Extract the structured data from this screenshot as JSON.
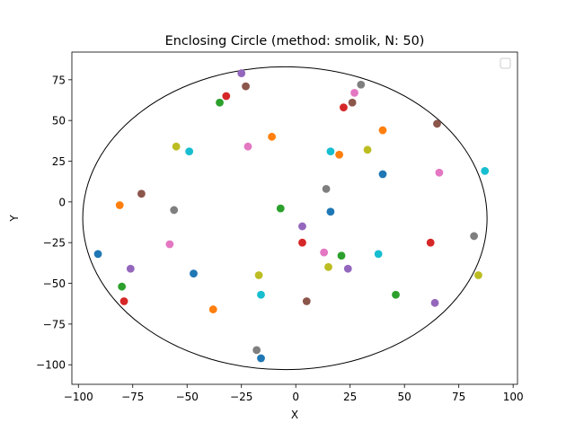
{
  "chart_data": {
    "type": "scatter",
    "title": "Enclosing Circle (method: smolik, N: 50)",
    "xlabel": "X",
    "ylabel": "Y",
    "xlim": [
      -103,
      102
    ],
    "ylim": [
      -112,
      92
    ],
    "xticks": [
      -100,
      -75,
      -50,
      -25,
      0,
      25,
      50,
      75,
      100
    ],
    "xtick_labels": [
      "−100",
      "−75",
      "−50",
      "−25",
      "0",
      "25",
      "50",
      "75",
      "100"
    ],
    "yticks": [
      -100,
      -75,
      -50,
      -25,
      0,
      25,
      50,
      75
    ],
    "ytick_labels": [
      "−100",
      "−75",
      "−50",
      "−25",
      "0",
      "25",
      "50",
      "75"
    ],
    "grid": false,
    "legend": "top-right (empty)",
    "circle": {
      "center": [
        -5,
        -10
      ],
      "radius": 93
    },
    "points": [
      {
        "x": -91,
        "y": -32,
        "color": "#1f77b4"
      },
      {
        "x": -81,
        "y": -2,
        "color": "#ff7f0e"
      },
      {
        "x": -80,
        "y": -52,
        "color": "#2ca02c"
      },
      {
        "x": -79,
        "y": -61,
        "color": "#d62728"
      },
      {
        "x": -76,
        "y": -41,
        "color": "#9467bd"
      },
      {
        "x": -71,
        "y": 5,
        "color": "#8c564b"
      },
      {
        "x": -58,
        "y": -26,
        "color": "#e377c2"
      },
      {
        "x": -56,
        "y": -5,
        "color": "#7f7f7f"
      },
      {
        "x": -55,
        "y": 34,
        "color": "#bcbd22"
      },
      {
        "x": -49,
        "y": 31,
        "color": "#17becf"
      },
      {
        "x": -47,
        "y": -44,
        "color": "#1f77b4"
      },
      {
        "x": -38,
        "y": -66,
        "color": "#ff7f0e"
      },
      {
        "x": -35,
        "y": 61,
        "color": "#2ca02c"
      },
      {
        "x": -32,
        "y": 65,
        "color": "#d62728"
      },
      {
        "x": -25,
        "y": 79,
        "color": "#9467bd"
      },
      {
        "x": -23,
        "y": 71,
        "color": "#8c564b"
      },
      {
        "x": -22,
        "y": 34,
        "color": "#e377c2"
      },
      {
        "x": -18,
        "y": -91,
        "color": "#7f7f7f"
      },
      {
        "x": -17,
        "y": -45,
        "color": "#bcbd22"
      },
      {
        "x": -16,
        "y": -57,
        "color": "#17becf"
      },
      {
        "x": -16,
        "y": -96,
        "color": "#1f77b4"
      },
      {
        "x": -11,
        "y": 40,
        "color": "#ff7f0e"
      },
      {
        "x": -7,
        "y": -4,
        "color": "#2ca02c"
      },
      {
        "x": 3,
        "y": -25,
        "color": "#d62728"
      },
      {
        "x": 3,
        "y": -15,
        "color": "#9467bd"
      },
      {
        "x": 5,
        "y": -61,
        "color": "#8c564b"
      },
      {
        "x": 13,
        "y": -31,
        "color": "#e377c2"
      },
      {
        "x": 14,
        "y": 8,
        "color": "#7f7f7f"
      },
      {
        "x": 15,
        "y": -40,
        "color": "#bcbd22"
      },
      {
        "x": 16,
        "y": 31,
        "color": "#17becf"
      },
      {
        "x": 16,
        "y": -6,
        "color": "#1f77b4"
      },
      {
        "x": 20,
        "y": 29,
        "color": "#ff7f0e"
      },
      {
        "x": 21,
        "y": -33,
        "color": "#2ca02c"
      },
      {
        "x": 22,
        "y": 58,
        "color": "#d62728"
      },
      {
        "x": 24,
        "y": -41,
        "color": "#9467bd"
      },
      {
        "x": 26,
        "y": 61,
        "color": "#8c564b"
      },
      {
        "x": 27,
        "y": 67,
        "color": "#e377c2"
      },
      {
        "x": 30,
        "y": 72,
        "color": "#7f7f7f"
      },
      {
        "x": 33,
        "y": 32,
        "color": "#bcbd22"
      },
      {
        "x": 38,
        "y": -32,
        "color": "#17becf"
      },
      {
        "x": 40,
        "y": 17,
        "color": "#1f77b4"
      },
      {
        "x": 40,
        "y": 44,
        "color": "#ff7f0e"
      },
      {
        "x": 46,
        "y": -57,
        "color": "#2ca02c"
      },
      {
        "x": 62,
        "y": -25,
        "color": "#d62728"
      },
      {
        "x": 64,
        "y": -62,
        "color": "#9467bd"
      },
      {
        "x": 65,
        "y": 48,
        "color": "#8c564b"
      },
      {
        "x": 66,
        "y": 18,
        "color": "#e377c2"
      },
      {
        "x": 82,
        "y": -21,
        "color": "#7f7f7f"
      },
      {
        "x": 84,
        "y": -45,
        "color": "#bcbd22"
      },
      {
        "x": 87,
        "y": 19,
        "color": "#17becf"
      }
    ]
  }
}
